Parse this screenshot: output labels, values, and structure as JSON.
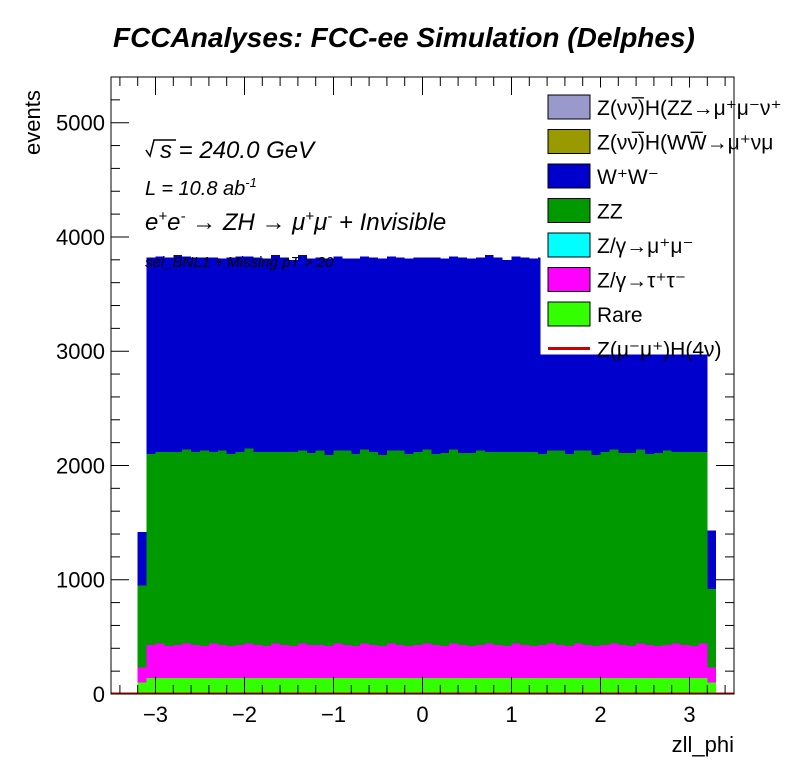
{
  "chart_data": {
    "type": "bar",
    "stacked": true,
    "title": "FCCAnalyses: FCC-ee Simulation (Delphes)",
    "xlabel": "zll_phi",
    "ylabel": "events",
    "xlim": [
      -3.5,
      3.5
    ],
    "ylim": [
      0,
      5400
    ],
    "x_ticks": [
      -3,
      -2,
      -1,
      0,
      1,
      2,
      3
    ],
    "x_tick_labels": [
      "−3",
      "−2",
      "−1",
      "0",
      "1",
      "2",
      "3"
    ],
    "y_ticks": [
      0,
      1000,
      2000,
      3000,
      4000,
      5000
    ],
    "y_tick_labels": [
      "0",
      "1000",
      "2000",
      "3000",
      "4000",
      "5000"
    ],
    "bins": {
      "start": -3.5,
      "width": 0.1,
      "count": 70
    },
    "annotations": {
      "sqrt_s": "s",
      "energy": " = 240.0 GeV",
      "lumi_prefix": "L = 10.8 ab",
      "lumi_exp": "-1",
      "process": "e",
      "process_sup1": "+",
      "process_mid": "e",
      "process_sup2": "-",
      "process_arrow1": " → ZH → μ",
      "process_sup3": "+",
      "process_mu": "μ",
      "process_sup4": "-",
      "process_tail": " + Invisible",
      "selection": "sel_BNL1 + Missing pT > 20"
    },
    "legend_position": "top-right",
    "series": [
      {
        "name": "Z(νν̅)H(ZZ→μ⁺μ⁻ν⁺",
        "color": "#9999cc",
        "values": [
          0,
          0,
          0,
          0,
          0,
          0,
          0,
          0,
          0,
          0,
          0,
          0,
          0,
          0,
          0,
          0,
          0,
          0,
          0,
          0,
          0,
          0,
          0,
          0,
          0,
          0,
          0,
          0,
          0,
          0,
          0,
          0,
          0,
          0,
          0,
          0,
          0,
          0,
          0,
          0,
          0,
          0,
          0,
          0,
          0,
          0,
          0,
          0,
          0,
          0,
          0,
          0,
          0,
          0,
          0,
          0,
          0,
          0,
          0,
          0,
          0,
          0,
          0,
          0,
          0,
          0,
          0,
          0,
          0,
          0
        ]
      },
      {
        "name": "Z(νν̅)H(WW̅→μ⁺νμ",
        "color": "#999900",
        "values": [
          0,
          0,
          0,
          0,
          0,
          0,
          0,
          0,
          0,
          0,
          0,
          0,
          0,
          0,
          0,
          0,
          0,
          0,
          0,
          0,
          0,
          0,
          0,
          0,
          0,
          0,
          0,
          0,
          0,
          0,
          0,
          0,
          0,
          0,
          0,
          0,
          0,
          0,
          0,
          0,
          0,
          0,
          0,
          0,
          0,
          0,
          0,
          0,
          0,
          0,
          0,
          0,
          0,
          0,
          0,
          0,
          0,
          0,
          0,
          0,
          0,
          0,
          0,
          0,
          0,
          0,
          0,
          0,
          0,
          0
        ]
      },
      {
        "name": "W⁺W⁻",
        "color": "#0000cc",
        "values": [
          0,
          0,
          0,
          470,
          1720,
          1710,
          1700,
          1720,
          1690,
          1700,
          1690,
          1700,
          1680,
          1720,
          1710,
          1680,
          1700,
          1690,
          1720,
          1700,
          1680,
          1710,
          1700,
          1690,
          1720,
          1700,
          1680,
          1710,
          1690,
          1700,
          1720,
          1700,
          1690,
          1710,
          1700,
          1680,
          1720,
          1700,
          1690,
          1710,
          1700,
          1690,
          1720,
          1700,
          1680,
          1710,
          1700,
          1690,
          1720,
          1700,
          1690,
          1710,
          1700,
          1680,
          1720,
          1700,
          1690,
          1710,
          1700,
          1690,
          1720,
          1700,
          1690,
          1700,
          1710,
          1690,
          1710,
          510,
          0,
          0
        ]
      },
      {
        "name": "ZZ",
        "color": "#009900",
        "values": [
          0,
          0,
          0,
          720,
          1670,
          1680,
          1700,
          1690,
          1700,
          1690,
          1710,
          1680,
          1700,
          1680,
          1690,
          1710,
          1690,
          1700,
          1680,
          1690,
          1700,
          1690,
          1680,
          1700,
          1670,
          1690,
          1700,
          1680,
          1700,
          1690,
          1670,
          1690,
          1700,
          1680,
          1690,
          1700,
          1670,
          1690,
          1700,
          1680,
          1690,
          1700,
          1680,
          1690,
          1700,
          1680,
          1690,
          1700,
          1670,
          1690,
          1700,
          1680,
          1690,
          1700,
          1670,
          1690,
          1700,
          1680,
          1690,
          1700,
          1670,
          1690,
          1700,
          1680,
          1690,
          1700,
          1680,
          690,
          0,
          0
        ]
      },
      {
        "name": "Z/γ→μ⁺μ⁻",
        "color": "#00ffff",
        "values": [
          0,
          0,
          0,
          0,
          0,
          0,
          0,
          0,
          0,
          0,
          0,
          0,
          0,
          0,
          0,
          0,
          0,
          0,
          0,
          0,
          0,
          0,
          0,
          0,
          0,
          0,
          0,
          0,
          0,
          0,
          0,
          0,
          0,
          0,
          0,
          0,
          0,
          0,
          0,
          0,
          0,
          0,
          0,
          0,
          0,
          0,
          0,
          0,
          0,
          0,
          0,
          0,
          0,
          0,
          0,
          0,
          0,
          0,
          0,
          0,
          0,
          0,
          0,
          0,
          0,
          0,
          0,
          0,
          0,
          0
        ]
      },
      {
        "name": "Z/γ→τ⁺τ⁻",
        "color": "#ff00ff",
        "values": [
          0,
          0,
          0,
          130,
          290,
          300,
          280,
          290,
          300,
          290,
          280,
          300,
          290,
          280,
          290,
          300,
          290,
          280,
          300,
          290,
          280,
          300,
          290,
          290,
          280,
          300,
          290,
          280,
          300,
          290,
          280,
          300,
          290,
          280,
          290,
          300,
          290,
          280,
          300,
          290,
          280,
          290,
          300,
          290,
          280,
          300,
          290,
          280,
          290,
          300,
          290,
          280,
          300,
          290,
          280,
          290,
          300,
          290,
          280,
          300,
          290,
          280,
          290,
          300,
          290,
          280,
          300,
          130,
          0,
          0
        ]
      },
      {
        "name": "Rare",
        "color": "#33ff00",
        "values": [
          0,
          0,
          0,
          100,
          140,
          140,
          140,
          140,
          140,
          140,
          140,
          140,
          140,
          140,
          140,
          140,
          140,
          140,
          140,
          140,
          140,
          140,
          140,
          140,
          140,
          140,
          140,
          140,
          140,
          140,
          140,
          140,
          140,
          140,
          140,
          140,
          140,
          140,
          140,
          140,
          140,
          140,
          140,
          140,
          140,
          140,
          140,
          140,
          140,
          140,
          140,
          140,
          140,
          140,
          140,
          140,
          140,
          140,
          140,
          140,
          140,
          140,
          140,
          140,
          140,
          140,
          140,
          100,
          0,
          0
        ]
      },
      {
        "name": "Z(μ⁻μ⁺)H(4ν)",
        "color": "#cc0000",
        "line": true,
        "values": [
          4,
          4,
          4,
          4,
          4,
          4,
          4,
          4,
          4,
          4,
          4,
          4,
          4,
          4,
          4,
          4,
          4,
          4,
          4,
          4,
          4,
          4,
          4,
          4,
          4,
          4,
          4,
          4,
          4,
          4,
          4,
          4,
          4,
          4,
          4,
          4,
          4,
          4,
          4,
          4,
          4,
          4,
          4,
          4,
          4,
          4,
          4,
          4,
          4,
          4,
          4,
          4,
          4,
          4,
          4,
          4,
          4,
          4,
          4,
          4,
          4,
          4,
          4,
          4,
          4,
          4,
          4,
          4,
          4,
          4
        ]
      }
    ]
  }
}
